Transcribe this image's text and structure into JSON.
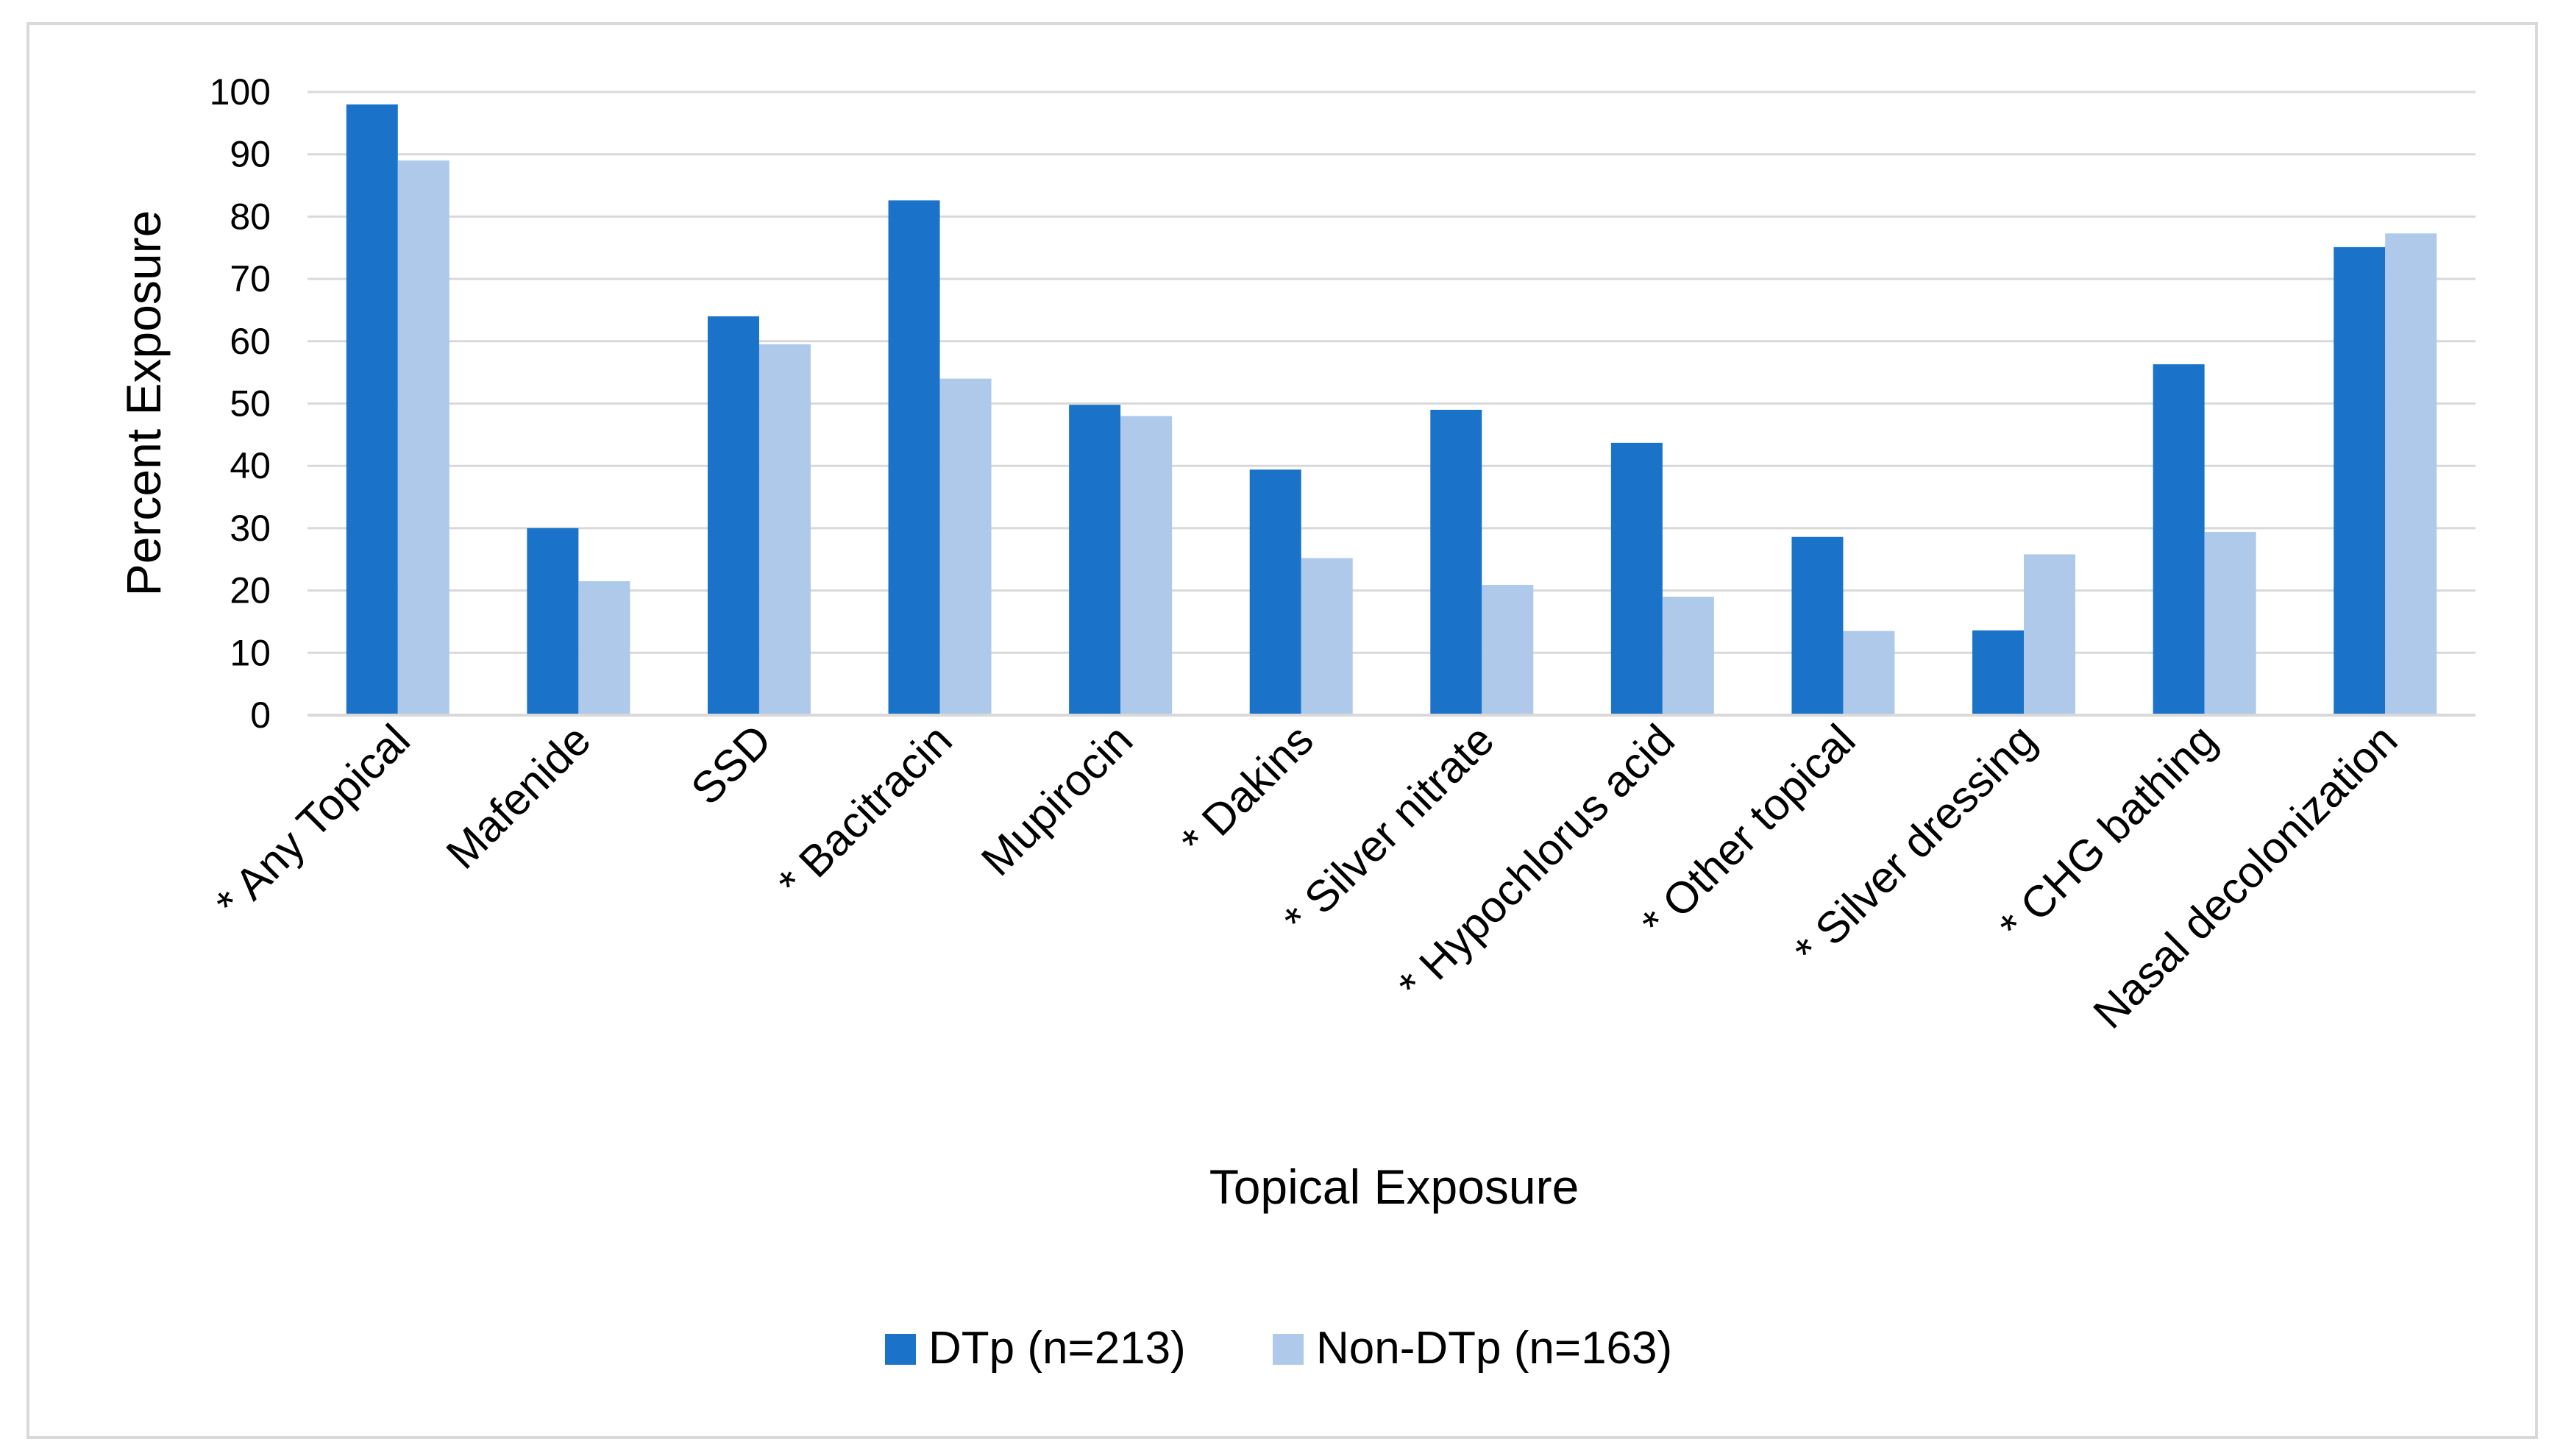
{
  "chart_data": {
    "type": "bar",
    "title": "",
    "xlabel": "Topical Exposure",
    "ylabel": "Percent Exposure",
    "ylim": [
      0,
      100
    ],
    "yticks": [
      0,
      10,
      20,
      30,
      40,
      50,
      60,
      70,
      80,
      90,
      100
    ],
    "grid": true,
    "legend_position": "bottom",
    "categories": [
      "* Any Topical",
      "Mafenide",
      "SSD",
      "* Bacitracin",
      "Mupirocin",
      "* Dakins",
      "* Silver nitrate",
      "* Hypochlorus acid",
      "* Other topical",
      "* Silver dressing",
      "* CHG bathing",
      "Nasal decolonization"
    ],
    "series": [
      {
        "name": "DTp (n=213)",
        "color": "#1a73c8",
        "values": [
          98,
          30,
          64,
          82.6,
          49.8,
          39.4,
          49,
          43.7,
          28.6,
          13.6,
          56.3,
          75.1
        ]
      },
      {
        "name": "Non-DTp (n=163)",
        "color": "#aec9ea",
        "values": [
          89,
          21.5,
          59.5,
          54,
          48,
          25.2,
          20.9,
          19,
          13.5,
          25.8,
          29.4,
          77.3
        ]
      }
    ]
  }
}
